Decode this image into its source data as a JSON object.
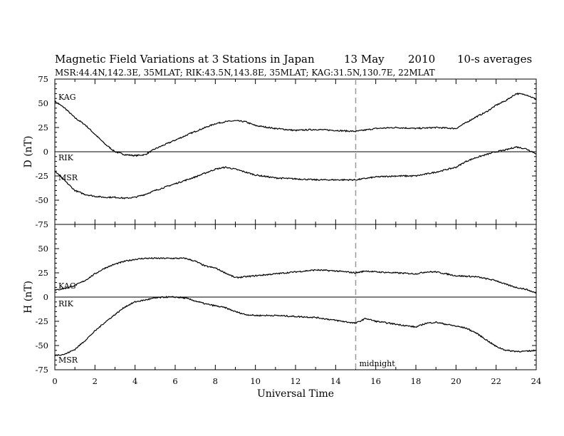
{
  "header": {
    "title": "Magnetic Field Variations at 3 Stations in Japan",
    "date": "13  May",
    "year": "2010",
    "averaging": "10-s averages",
    "stations_line": "MSR:44.4N,142.3E, 35MLAT;  RIK:43.5N,143.8E, 35MLAT;  KAG:31.5N,130.7E, 22MLAT"
  },
  "chart_data": [
    {
      "type": "line",
      "panel": "D",
      "ylabel": "D (nT)",
      "ylim": [
        -75,
        75
      ],
      "yticks": [
        -75,
        -50,
        -25,
        0,
        25,
        50,
        75
      ],
      "ytick_labels": [
        "-75",
        "-50",
        "-25",
        "0",
        "25",
        "50",
        "75"
      ],
      "xlim": [
        0,
        24
      ],
      "series": [
        {
          "name": "KAG",
          "x": [
            0,
            0.5,
            1,
            1.5,
            2,
            2.5,
            3,
            3.5,
            4,
            4.5,
            5,
            6,
            7,
            8,
            8.5,
            9,
            9.5,
            10,
            11,
            12,
            13,
            14,
            15,
            16,
            17,
            18,
            19,
            20,
            20.5,
            21,
            21.5,
            22,
            22.5,
            23,
            23.5,
            24
          ],
          "y": [
            52,
            45,
            35,
            28,
            18,
            8,
            0,
            -3,
            -4,
            -3,
            3,
            12,
            21,
            29,
            31,
            32,
            31,
            27,
            24,
            22,
            23,
            22,
            21,
            24,
            25,
            24,
            25,
            24,
            30,
            36,
            41,
            48,
            53,
            60,
            59,
            54
          ]
        },
        {
          "name": "RIK",
          "x": [
            0,
            24
          ],
          "y": [
            0,
            0
          ]
        },
        {
          "name": "MSR",
          "x": [
            0,
            0.5,
            1,
            1.5,
            2,
            2.5,
            3,
            3.5,
            4,
            4.5,
            5,
            6,
            7,
            8,
            8.5,
            9,
            10,
            11,
            12,
            13,
            14,
            15,
            16,
            17,
            18,
            19,
            20,
            20.5,
            21,
            21.5,
            22,
            22.5,
            23,
            23.5,
            24
          ],
          "y": [
            -20,
            -30,
            -40,
            -44,
            -46,
            -47,
            -47,
            -48,
            -47,
            -44,
            -40,
            -33,
            -26,
            -18,
            -16,
            -18,
            -24,
            -27,
            -28,
            -29,
            -29,
            -29,
            -26,
            -25,
            -25,
            -21,
            -16,
            -10,
            -6,
            -3,
            0,
            2,
            5,
            3,
            -2
          ]
        }
      ],
      "station_labels": [
        "KAG",
        "RIK",
        "MSR"
      ]
    },
    {
      "type": "line",
      "panel": "H",
      "ylabel": "H (nT)",
      "ylim": [
        -75,
        75
      ],
      "yticks": [
        -75,
        -50,
        -25,
        0,
        25,
        50
      ],
      "ytick_labels": [
        "-75",
        "-50",
        "-25",
        "0",
        "25",
        "50"
      ],
      "xlim": [
        0,
        24
      ],
      "xticks": [
        0,
        2,
        4,
        6,
        8,
        10,
        12,
        14,
        16,
        18,
        20,
        22,
        24
      ],
      "xtick_labels": [
        "0",
        "2",
        "4",
        "6",
        "8",
        "10",
        "12",
        "14",
        "16",
        "18",
        "20",
        "22",
        "24"
      ],
      "xlabel": "Universal Time",
      "series": [
        {
          "name": "KAG",
          "x": [
            0,
            0.5,
            1,
            1.5,
            2,
            2.5,
            3,
            3.5,
            4,
            4.5,
            5,
            5.5,
            6,
            6.5,
            7,
            7.5,
            8,
            8.5,
            9,
            9.5,
            10,
            11,
            12,
            13,
            14,
            15,
            15.5,
            16,
            17,
            18,
            18.5,
            19,
            20,
            21,
            22,
            22.5,
            23,
            23.5,
            24
          ],
          "y": [
            7,
            9,
            12,
            17,
            24,
            30,
            34,
            37,
            39,
            40,
            40,
            40,
            40,
            40,
            37,
            32,
            30,
            25,
            20,
            21,
            22,
            24,
            26,
            28,
            27,
            25,
            27,
            26,
            25,
            24,
            26,
            26,
            22,
            21,
            17,
            13,
            10,
            8,
            4
          ]
        },
        {
          "name": "RIK",
          "x": [
            0,
            24
          ],
          "y": [
            0,
            0
          ]
        },
        {
          "name": "MSR",
          "x": [
            0,
            0.5,
            1,
            1.5,
            2,
            2.5,
            3,
            3.5,
            4,
            4.5,
            5,
            5.5,
            6,
            6.5,
            7,
            7.5,
            8,
            8.5,
            9,
            9.5,
            10,
            11,
            12,
            13,
            14,
            15,
            15.5,
            16,
            17,
            18,
            18.5,
            19,
            20,
            20.5,
            21,
            21.5,
            22,
            22.5,
            23,
            23.5,
            24
          ],
          "y": [
            -60,
            -59,
            -54,
            -45,
            -35,
            -26,
            -18,
            -10,
            -5,
            -3,
            -1,
            0,
            0,
            -1,
            -4,
            -7,
            -9,
            -11,
            -15,
            -18,
            -19,
            -19,
            -20,
            -21,
            -24,
            -27,
            -22,
            -25,
            -28,
            -31,
            -27,
            -26,
            -30,
            -32,
            -37,
            -44,
            -51,
            -55,
            -56,
            -56,
            -55
          ]
        }
      ],
      "station_labels": [
        "KAG",
        "RIK",
        "MSR"
      ],
      "annotation": {
        "text": "midnight",
        "x": 15
      }
    }
  ],
  "style": {
    "trace_color": "#000000",
    "midnight_line_color": "#9a9a9a"
  }
}
